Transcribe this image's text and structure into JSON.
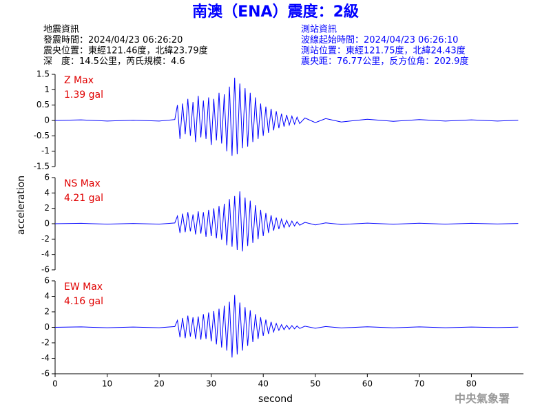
{
  "header": {
    "title": "南澳（ENA）震度：2級",
    "event": [
      "地震資訊",
      "發震時間：2024/04/23 06:26:20",
      "震央位置：東經121.46度，北緯23.79度",
      "深　度：14.5公里，芮氏規模：4.6"
    ],
    "station": [
      "測站資訊",
      "波線起始時間：2024/04/23 06:26:10",
      "測站位置：東經121.75度，北緯24.43度",
      "震央距：76.77公里，反方位角：202.9度"
    ]
  },
  "ylabel": "acceleration",
  "footer": "中央氣象署",
  "chart_data": [
    {
      "type": "line",
      "annotation": [
        "Z Max",
        "1.39 gal"
      ],
      "xlim": [
        0,
        90
      ],
      "ylim": [
        -1.5,
        1.5
      ],
      "yticks": [
        1.5,
        1,
        0.5,
        0,
        -0.5,
        -1,
        -1.5
      ],
      "x": [
        0,
        5,
        10,
        15,
        20,
        23,
        23.5,
        24,
        24.5,
        25,
        25.5,
        26,
        26.5,
        27,
        27.5,
        28,
        28.5,
        29,
        29.5,
        30,
        30.5,
        31,
        31.5,
        32,
        32.5,
        33,
        33.5,
        34,
        34.5,
        35,
        35.5,
        36,
        36.5,
        37,
        37.5,
        38,
        38.5,
        39,
        39.5,
        40,
        40.5,
        41,
        41.5,
        42,
        42.5,
        43,
        43.5,
        44,
        44.5,
        45,
        45.5,
        46,
        46.5,
        47,
        48,
        50,
        52,
        55,
        60,
        65,
        70,
        75,
        80,
        85,
        89
      ],
      "series": [
        {
          "color": "#0000ff",
          "values": [
            0,
            0.02,
            -0.02,
            0.01,
            -0.02,
            0.03,
            0.5,
            -0.6,
            0.55,
            -0.45,
            0.7,
            -0.5,
            0.6,
            -0.7,
            0.8,
            -0.55,
            0.65,
            -0.6,
            0.75,
            -0.8,
            0.7,
            -0.65,
            0.9,
            -0.75,
            0.85,
            -1.0,
            1.1,
            -1.15,
            1.39,
            -1.1,
            1.2,
            -0.9,
            1.05,
            -0.85,
            0.9,
            -0.7,
            0.75,
            -0.6,
            0.55,
            -0.5,
            0.45,
            -0.4,
            0.38,
            -0.32,
            0.3,
            -0.25,
            0.22,
            -0.2,
            0.18,
            -0.15,
            0.14,
            -0.12,
            0.11,
            -0.1,
            0.08,
            -0.07,
            0.06,
            -0.05,
            0.04,
            -0.03,
            0.03,
            -0.02,
            0.02,
            -0.02,
            0.01
          ]
        }
      ]
    },
    {
      "type": "line",
      "annotation": [
        "NS Max",
        "4.21 gal"
      ],
      "xlim": [
        0,
        90
      ],
      "ylim": [
        -6,
        6
      ],
      "yticks": [
        6,
        4,
        2,
        0,
        -2,
        -4,
        -6
      ],
      "x": [
        0,
        5,
        10,
        15,
        20,
        23,
        23.5,
        24,
        24.5,
        25,
        25.5,
        26,
        26.5,
        27,
        27.5,
        28,
        28.5,
        29,
        29.5,
        30,
        30.5,
        31,
        31.5,
        32,
        32.5,
        33,
        33.5,
        34,
        34.5,
        35,
        35.5,
        36,
        36.5,
        37,
        37.5,
        38,
        38.5,
        39,
        39.5,
        40,
        40.5,
        41,
        41.5,
        42,
        42.5,
        43,
        43.5,
        44,
        44.5,
        45,
        45.5,
        46,
        46.5,
        47,
        48,
        50,
        52,
        55,
        60,
        65,
        70,
        75,
        80,
        85,
        89
      ],
      "series": [
        {
          "color": "#0000ff",
          "values": [
            0,
            0.05,
            -0.05,
            0.04,
            -0.05,
            0.1,
            1.0,
            -1.2,
            1.3,
            -1.1,
            1.5,
            -1.0,
            1.2,
            -1.4,
            1.6,
            -1.3,
            1.5,
            -1.7,
            1.8,
            -1.6,
            2.0,
            -1.9,
            2.3,
            -2.1,
            2.6,
            -2.8,
            3.2,
            -3.0,
            3.6,
            -3.4,
            4.21,
            -3.6,
            3.4,
            -2.9,
            3.0,
            -2.5,
            2.4,
            -2.0,
            1.8,
            -1.6,
            1.4,
            -1.2,
            1.1,
            -0.9,
            0.8,
            -0.7,
            0.6,
            -0.5,
            0.45,
            -0.4,
            0.35,
            -0.3,
            0.25,
            -0.2,
            0.18,
            -0.15,
            0.12,
            -0.1,
            0.08,
            -0.07,
            0.06,
            -0.05,
            0.05,
            -0.04,
            0.04
          ]
        }
      ]
    },
    {
      "type": "line",
      "annotation": [
        "EW Max",
        "4.16 gal"
      ],
      "xlim": [
        0,
        90
      ],
      "ylim": [
        -6,
        6
      ],
      "yticks": [
        6,
        4,
        2,
        0,
        -2,
        -4,
        -6
      ],
      "xticks": [
        0,
        10,
        20,
        30,
        40,
        50,
        60,
        70,
        80
      ],
      "xlabel": "second",
      "x": [
        0,
        5,
        10,
        15,
        20,
        23,
        23.5,
        24,
        24.5,
        25,
        25.5,
        26,
        26.5,
        27,
        27.5,
        28,
        28.5,
        29,
        29.5,
        30,
        30.5,
        31,
        31.5,
        32,
        32.5,
        33,
        33.5,
        34,
        34.5,
        35,
        35.5,
        36,
        36.5,
        37,
        37.5,
        38,
        38.5,
        39,
        39.5,
        40,
        40.5,
        41,
        41.5,
        42,
        42.5,
        43,
        43.5,
        44,
        44.5,
        45,
        45.5,
        46,
        46.5,
        47,
        48,
        50,
        52,
        55,
        60,
        65,
        70,
        75,
        80,
        85,
        89
      ],
      "series": [
        {
          "color": "#0000ff",
          "values": [
            0,
            0.05,
            -0.05,
            0.04,
            -0.05,
            0.1,
            0.9,
            -1.3,
            1.2,
            -1.4,
            1.5,
            -1.2,
            1.3,
            -1.5,
            1.4,
            -1.6,
            1.7,
            -1.5,
            1.9,
            -1.8,
            2.1,
            -2.2,
            2.4,
            -2.6,
            2.8,
            -3.0,
            3.3,
            -3.9,
            4.16,
            -3.5,
            3.2,
            -3.0,
            2.6,
            -2.4,
            2.2,
            -1.9,
            1.7,
            -1.5,
            1.3,
            -1.1,
            1.0,
            -0.85,
            0.7,
            -0.6,
            0.5,
            -0.4,
            0.35,
            -0.3,
            0.28,
            -0.25,
            0.22,
            -0.2,
            0.18,
            -0.15,
            0.14,
            -0.12,
            0.1,
            -0.08,
            0.07,
            -0.06,
            0.05,
            -0.05,
            0.04,
            -0.04,
            0.03
          ]
        }
      ]
    }
  ]
}
